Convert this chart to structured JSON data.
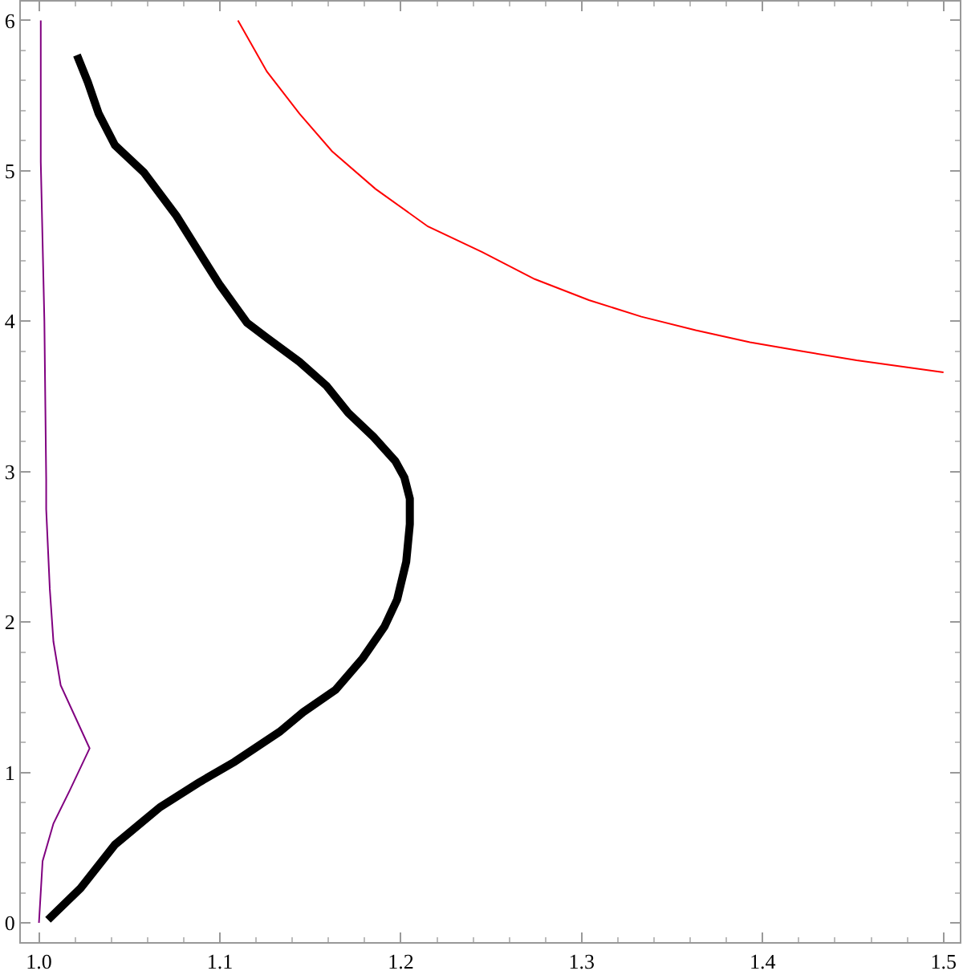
{
  "chart_data": {
    "type": "line",
    "xlim": [
      0.99,
      1.509
    ],
    "ylim": [
      -0.128,
      6.125
    ],
    "xticks": [
      {
        "value": 1.0,
        "label": "1.0"
      },
      1.1,
      1.2,
      1.3,
      1.4,
      1.5
    ],
    "yticks": [
      0,
      1,
      2,
      3,
      4,
      5,
      6
    ],
    "legend": false,
    "marker": "none",
    "line_style": "solid",
    "series": [
      {
        "color": "#800080",
        "x": [
          1.0,
          1.002,
          1.008,
          1.017,
          1.028,
          1.02,
          1.012,
          1.008,
          1.006,
          1.004,
          1.004,
          1.003,
          1.001,
          1.001
        ],
        "values": [
          0,
          0.41,
          0.66,
          0.88,
          1.16,
          1.37,
          1.58,
          1.87,
          2.22,
          2.75,
          2.95,
          4.0,
          5.06,
          6.0
        ]
      },
      {
        "color": "#ff0000",
        "x": [
          1.11,
          1.126,
          1.144,
          1.162,
          1.186,
          1.215,
          1.245,
          1.274,
          1.304,
          1.333,
          1.363,
          1.393,
          1.422,
          1.452,
          1.5
        ],
        "values": [
          6.0,
          5.66,
          5.38,
          5.13,
          4.88,
          4.63,
          4.46,
          4.28,
          4.14,
          4.03,
          3.94,
          3.86,
          3.8,
          3.74,
          3.66
        ]
      },
      {
        "color": "#000000",
        "x": [
          1.005,
          1.023,
          1.042,
          1.067,
          1.088,
          1.108,
          1.133,
          1.146,
          1.164,
          1.179,
          1.191,
          1.198,
          1.203,
          1.205,
          1.205,
          1.202,
          1.197,
          1.185,
          1.171,
          1.159,
          1.144,
          1.126,
          1.115,
          1.1,
          1.089,
          1.076,
          1.058,
          1.042,
          1.033,
          1.027,
          1.021
        ],
        "values": [
          0.02,
          0.23,
          0.52,
          0.77,
          0.93,
          1.07,
          1.27,
          1.4,
          1.55,
          1.76,
          1.97,
          2.15,
          2.4,
          2.65,
          2.82,
          2.96,
          3.07,
          3.23,
          3.39,
          3.57,
          3.73,
          3.89,
          3.99,
          4.24,
          4.45,
          4.7,
          4.99,
          5.17,
          5.38,
          5.59,
          5.77
        ]
      }
    ]
  }
}
